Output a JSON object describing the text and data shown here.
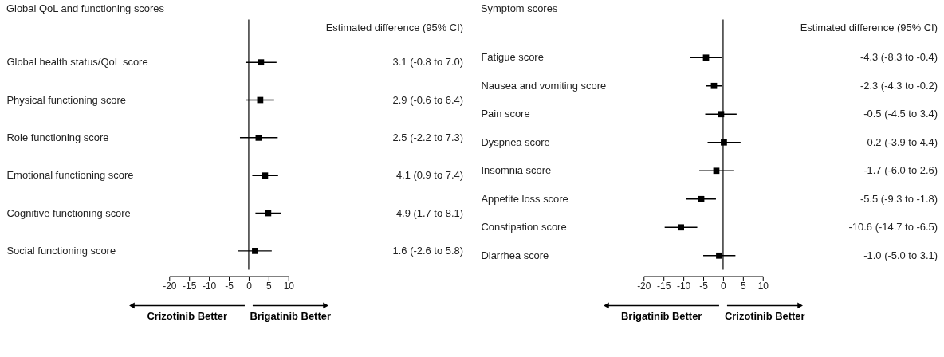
{
  "chart_data": [
    {
      "type": "scatter",
      "orientation": "horizontal",
      "title": "Global QoL and functioning scores",
      "categories": [
        "Global health status/QoL score",
        "Physical functioning score",
        "Role functioning score",
        "Emotional functioning score",
        "Cognitive functioning score",
        "Social functioning score"
      ],
      "values": [
        3.1,
        2.9,
        2.5,
        4.1,
        4.9,
        1.6
      ],
      "errors": [
        [
          -0.8,
          7.0
        ],
        [
          -0.6,
          6.4
        ],
        [
          -2.2,
          7.3
        ],
        [
          0.9,
          7.4
        ],
        [
          1.7,
          8.1
        ],
        [
          -2.6,
          5.8
        ]
      ],
      "value_labels": [
        "3.1 (-0.8 to 7.0)",
        "2.9 (-0.6 to 6.4)",
        "2.5 (-2.2 to 7.3)",
        "4.1 (0.9 to 7.4)",
        "4.9 (1.7 to 8.1)",
        "1.6 (-2.6 to 5.8)"
      ],
      "color": "#000000",
      "marker": "square",
      "grid": false,
      "xlim": [
        -20,
        10
      ],
      "xticks": [
        -20,
        -15,
        -10,
        -5,
        0,
        5,
        10
      ],
      "ref_lines": [
        {
          "axis": "x",
          "value": 0
        }
      ],
      "annotations": [
        "Estimated difference (95% CI)",
        "Crizotinib Better",
        "Brigatinib Better"
      ]
    },
    {
      "type": "scatter",
      "orientation": "horizontal",
      "title": "Symptom scores",
      "categories": [
        "Fatigue score",
        "Nausea and vomiting score",
        "Pain score",
        "Dyspnea score",
        "Insomnia score",
        "Appetite loss score",
        "Constipation score",
        "Diarrhea score"
      ],
      "values": [
        -4.3,
        -2.3,
        -0.5,
        0.2,
        -1.7,
        -5.5,
        -10.6,
        -1.0
      ],
      "errors": [
        [
          -8.3,
          -0.4
        ],
        [
          -4.3,
          -0.2
        ],
        [
          -4.5,
          3.4
        ],
        [
          -3.9,
          4.4
        ],
        [
          -6.0,
          2.6
        ],
        [
          -9.3,
          -1.8
        ],
        [
          -14.7,
          -6.5
        ],
        [
          -5.0,
          3.1
        ]
      ],
      "value_labels": [
        "-4.3 (-8.3 to -0.4)",
        "-2.3 (-4.3 to -0.2)",
        "-0.5 (-4.5 to 3.4)",
        "0.2 (-3.9 to 4.4)",
        "-1.7 (-6.0 to 2.6)",
        "-5.5 (-9.3 to -1.8)",
        "-10.6 (-14.7 to -6.5)",
        "-1.0 (-5.0 to 3.1)"
      ],
      "color": "#000000",
      "marker": "square",
      "grid": false,
      "xlim": [
        -20,
        10
      ],
      "xticks": [
        -20,
        -15,
        -10,
        -5,
        0,
        5,
        10
      ],
      "ref_lines": [
        {
          "axis": "x",
          "value": 0
        }
      ],
      "annotations": [
        "Estimated difference (95% CI)",
        "Brigatinib Better",
        "Crizotinib Better"
      ]
    }
  ]
}
